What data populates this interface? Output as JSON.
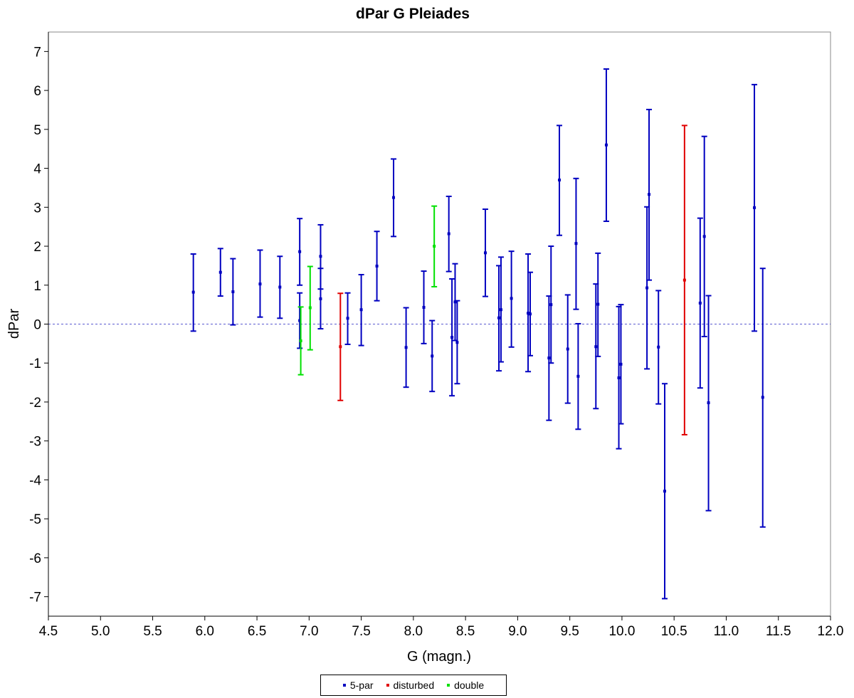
{
  "chart_data": {
    "type": "scatter",
    "title": "dPar G Pleiades",
    "xlabel": "G (magn.)",
    "ylabel": "dPar",
    "xlim": [
      4.5,
      12.0
    ],
    "ylim": [
      -7.5,
      7.5
    ],
    "x_ticks": [
      "4.5",
      "5.0",
      "5.5",
      "6.0",
      "6.5",
      "7.0",
      "7.5",
      "8.0",
      "8.5",
      "9.0",
      "9.5",
      "10.0",
      "10.5",
      "11.0",
      "11.5",
      "12.0"
    ],
    "y_ticks": [
      "7",
      "6",
      "5",
      "4",
      "3",
      "2",
      "1",
      "0",
      "-1",
      "-2",
      "-3",
      "-4",
      "-5",
      "-6",
      "-7"
    ],
    "reference_line_y": 0,
    "legend_placement": "bottom",
    "series": [
      {
        "name": "5-par",
        "color": "#0000c0",
        "points": [
          {
            "x": 5.89,
            "y": 0.82,
            "lo": -0.18,
            "hi": 1.8
          },
          {
            "x": 6.15,
            "y": 1.33,
            "lo": 0.72,
            "hi": 1.94
          },
          {
            "x": 6.27,
            "y": 0.83,
            "lo": -0.02,
            "hi": 1.68
          },
          {
            "x": 6.53,
            "y": 1.03,
            "lo": 0.18,
            "hi": 1.9
          },
          {
            "x": 6.72,
            "y": 0.95,
            "lo": 0.15,
            "hi": 1.74
          },
          {
            "x": 6.91,
            "y": 1.86,
            "lo": 1.0,
            "hi": 2.71
          },
          {
            "x": 6.91,
            "y": 0.09,
            "lo": -0.62,
            "hi": 0.8
          },
          {
            "x": 7.11,
            "y": 1.74,
            "lo": 0.9,
            "hi": 2.55
          },
          {
            "x": 7.11,
            "y": 0.65,
            "lo": -0.12,
            "hi": 1.43
          },
          {
            "x": 7.37,
            "y": 0.15,
            "lo": -0.52,
            "hi": 0.8
          },
          {
            "x": 7.5,
            "y": 0.37,
            "lo": -0.55,
            "hi": 1.27
          },
          {
            "x": 7.65,
            "y": 1.49,
            "lo": 0.6,
            "hi": 2.38
          },
          {
            "x": 7.81,
            "y": 3.25,
            "lo": 2.25,
            "hi": 4.24
          },
          {
            "x": 7.93,
            "y": -0.6,
            "lo": -1.62,
            "hi": 0.42
          },
          {
            "x": 8.1,
            "y": 0.43,
            "lo": -0.5,
            "hi": 1.36
          },
          {
            "x": 8.18,
            "y": -0.82,
            "lo": -1.73,
            "hi": 0.09
          },
          {
            "x": 8.34,
            "y": 2.32,
            "lo": 1.35,
            "hi": 3.28
          },
          {
            "x": 8.37,
            "y": -0.34,
            "lo": -1.84,
            "hi": 1.16
          },
          {
            "x": 8.4,
            "y": 0.57,
            "lo": -0.42,
            "hi": 1.55
          },
          {
            "x": 8.42,
            "y": -0.47,
            "lo": -1.53,
            "hi": 0.6
          },
          {
            "x": 8.69,
            "y": 1.83,
            "lo": 0.71,
            "hi": 2.95
          },
          {
            "x": 8.82,
            "y": 0.16,
            "lo": -1.2,
            "hi": 1.5
          },
          {
            "x": 8.84,
            "y": 0.37,
            "lo": -0.97,
            "hi": 1.72
          },
          {
            "x": 8.94,
            "y": 0.66,
            "lo": -0.59,
            "hi": 1.87
          },
          {
            "x": 9.1,
            "y": 0.28,
            "lo": -1.22,
            "hi": 1.8
          },
          {
            "x": 9.12,
            "y": 0.26,
            "lo": -0.81,
            "hi": 1.33
          },
          {
            "x": 9.3,
            "y": -0.87,
            "lo": -2.47,
            "hi": 0.72
          },
          {
            "x": 9.32,
            "y": 0.5,
            "lo": -1.0,
            "hi": 2.0
          },
          {
            "x": 9.4,
            "y": 3.7,
            "lo": 2.28,
            "hi": 5.1
          },
          {
            "x": 9.48,
            "y": -0.64,
            "lo": -2.03,
            "hi": 0.75
          },
          {
            "x": 9.56,
            "y": 2.07,
            "lo": 0.38,
            "hi": 3.74
          },
          {
            "x": 9.58,
            "y": -1.34,
            "lo": -2.7,
            "hi": 0.01
          },
          {
            "x": 9.75,
            "y": -0.58,
            "lo": -2.17,
            "hi": 1.03
          },
          {
            "x": 9.77,
            "y": 0.51,
            "lo": -0.83,
            "hi": 1.82
          },
          {
            "x": 9.85,
            "y": 4.6,
            "lo": 2.64,
            "hi": 6.55
          },
          {
            "x": 9.97,
            "y": -1.38,
            "lo": -3.2,
            "hi": 0.45
          },
          {
            "x": 9.99,
            "y": -1.03,
            "lo": -2.56,
            "hi": 0.5
          },
          {
            "x": 10.24,
            "y": 0.93,
            "lo": -1.15,
            "hi": 3.01
          },
          {
            "x": 10.26,
            "y": 3.33,
            "lo": 1.13,
            "hi": 5.51
          },
          {
            "x": 10.35,
            "y": -0.59,
            "lo": -2.05,
            "hi": 0.86
          },
          {
            "x": 10.41,
            "y": -4.29,
            "lo": -7.05,
            "hi": -1.53
          },
          {
            "x": 10.75,
            "y": 0.54,
            "lo": -1.64,
            "hi": 2.72
          },
          {
            "x": 10.79,
            "y": 2.25,
            "lo": -0.32,
            "hi": 4.82
          },
          {
            "x": 10.83,
            "y": -2.02,
            "lo": -4.79,
            "hi": 0.73
          },
          {
            "x": 11.27,
            "y": 2.99,
            "lo": -0.18,
            "hi": 6.15
          },
          {
            "x": 11.35,
            "y": -1.88,
            "lo": -5.21,
            "hi": 1.43
          }
        ]
      },
      {
        "name": "disturbed",
        "color": "#e00000",
        "points": [
          {
            "x": 7.3,
            "y": -0.58,
            "lo": -1.96,
            "hi": 0.79
          },
          {
            "x": 10.6,
            "y": 1.13,
            "lo": -2.84,
            "hi": 5.1
          }
        ]
      },
      {
        "name": "double",
        "color": "#00e000",
        "points": [
          {
            "x": 6.92,
            "y": -0.43,
            "lo": -1.3,
            "hi": 0.44
          },
          {
            "x": 7.01,
            "y": 0.42,
            "lo": -0.66,
            "hi": 1.48
          },
          {
            "x": 8.2,
            "y": 2.0,
            "lo": 0.96,
            "hi": 3.03
          }
        ]
      }
    ]
  }
}
